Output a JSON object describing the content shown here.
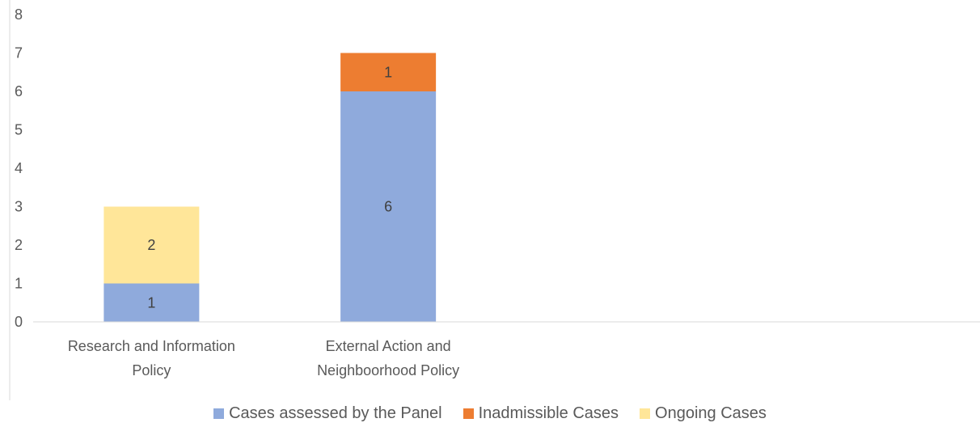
{
  "chart_data": {
    "type": "bar",
    "stacked": true,
    "categories": [
      [
        "Research and Information",
        "Policy"
      ],
      [
        "External Action and",
        "Neighboorhood Policy"
      ],
      [
        "",
        ""
      ],
      [
        "",
        ""
      ]
    ],
    "series": [
      {
        "name": "Cases assessed by the Panel",
        "color": "#8faadc",
        "values": [
          1,
          6,
          0,
          0
        ],
        "labels": [
          "1",
          "6",
          "",
          ""
        ]
      },
      {
        "name": "Inadmissible Cases",
        "color": "#ed7d31",
        "values": [
          0,
          1,
          0,
          0
        ],
        "labels": [
          "",
          "1",
          "",
          ""
        ]
      },
      {
        "name": "Ongoing Cases",
        "color": "#ffe699",
        "values": [
          2,
          0,
          0,
          0
        ],
        "labels": [
          "2",
          "",
          "",
          ""
        ]
      }
    ],
    "ylim": [
      0,
      8
    ],
    "yticks": [
      "0",
      "1",
      "2",
      "3",
      "4",
      "5",
      "6",
      "7",
      "8"
    ],
    "grid": false,
    "legend_position": "bottom"
  },
  "legend": {
    "items": [
      {
        "label": "Cases assessed by the Panel",
        "color": "#8faadc"
      },
      {
        "label": "Inadmissible Cases",
        "color": "#ed7d31"
      },
      {
        "label": "Ongoing Cases",
        "color": "#ffe699"
      }
    ]
  }
}
